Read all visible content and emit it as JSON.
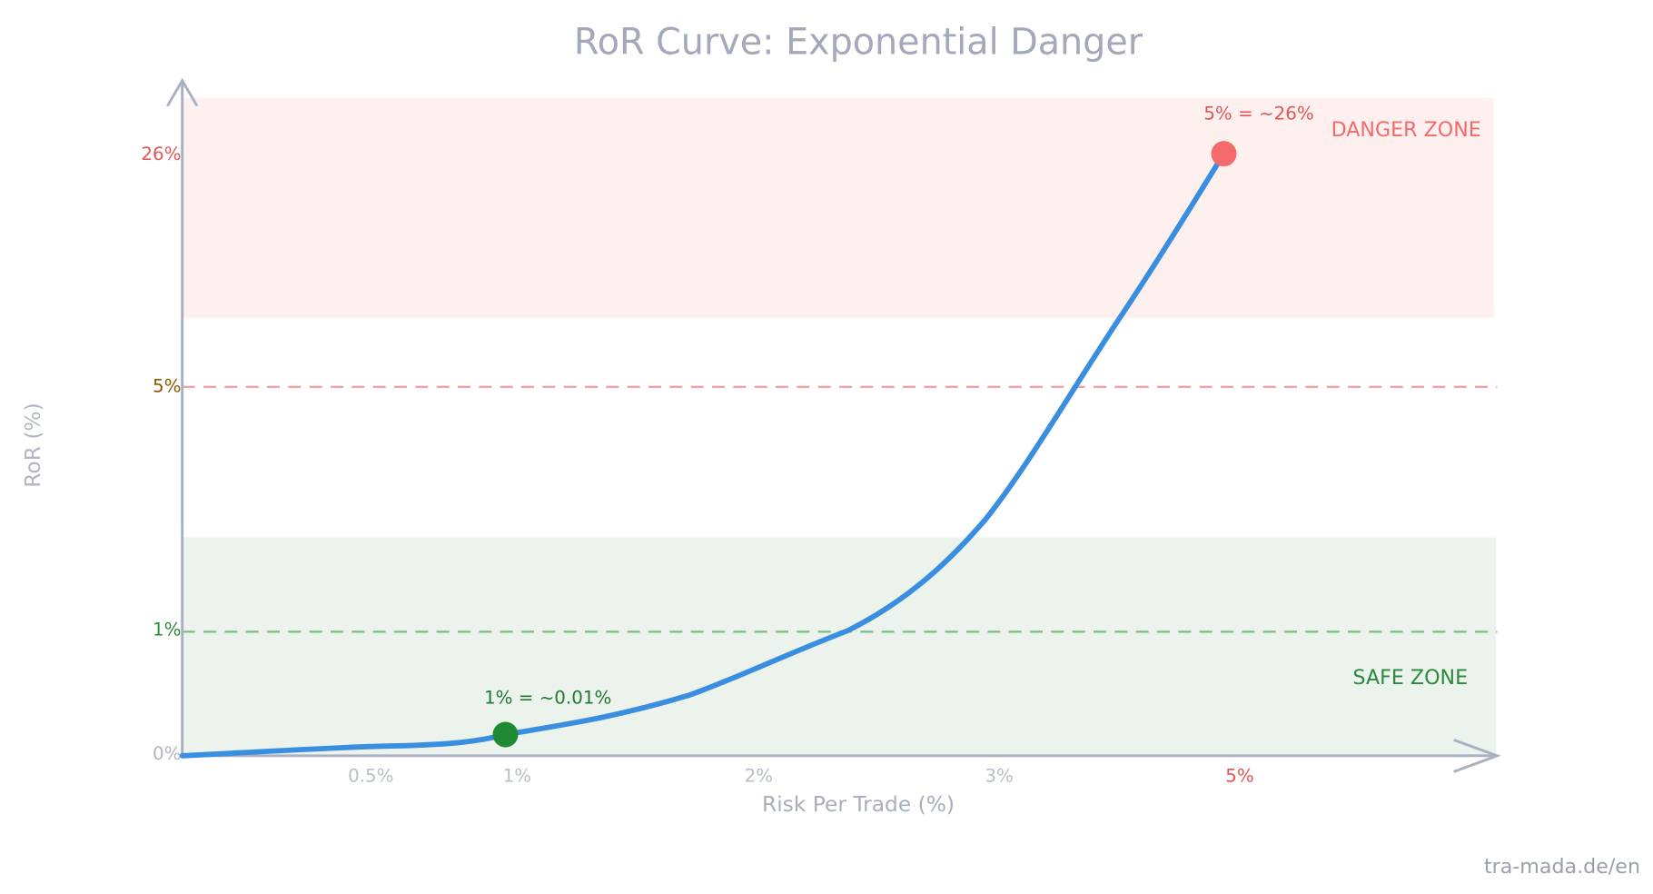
{
  "title": "RoR Curve: Exponential Danger",
  "y_axis_label": "RoR (%)",
  "x_axis_label": "Risk Per Trade (%)",
  "y_ticks": [
    "26%",
    "5%",
    "1%",
    "0%"
  ],
  "x_ticks": [
    "0.5%",
    "1%",
    "2%",
    "3%",
    "5%"
  ],
  "zones": {
    "danger": "DANGER ZONE",
    "safe": "SAFE ZONE"
  },
  "annotations": [
    "5% = ~26%",
    "1% = ~0.01%"
  ],
  "footer": "tra-mada.de/en"
}
